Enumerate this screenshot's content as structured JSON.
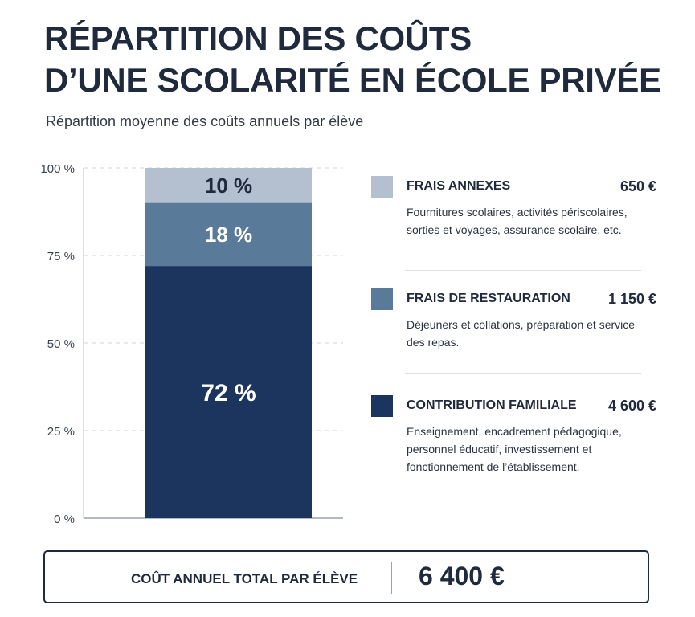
{
  "title": {
    "line1": "RÉPARTITION DES COÛTS",
    "line2": "D’UNE SCOLARITÉ EN ÉCOLE PRIVÉE"
  },
  "subtitle": "Répartition moyenne des coûts annuels par élève",
  "chart_data": {
    "type": "bar",
    "stacked": true,
    "ylim": [
      0,
      100
    ],
    "ytick_values": [
      0,
      25,
      50,
      75,
      100
    ],
    "ytick_labels": [
      "0 %",
      "25 %",
      "50 %",
      "75 %",
      "100 %"
    ],
    "grid": true,
    "series": [
      {
        "name": "CONTRIBUTION FAMILIALE",
        "value": 72,
        "label": "72 %",
        "color": "#1c355e"
      },
      {
        "name": "FRAIS DE RESTAURATION",
        "value": 18,
        "label": "18 %",
        "color": "#597a98"
      },
      {
        "name": "FRAIS ANNEXES",
        "value": 10,
        "label": "10 %",
        "color": "#b4bfd0"
      }
    ]
  },
  "legend": [
    {
      "name": "FRAIS ANNEXES",
      "amount": "650 €",
      "description": "Fournitures scolaires, activités périscolaires, sorties et voyages, assurance scolaire, etc.",
      "color": "#b4bfd0"
    },
    {
      "name": "FRAIS DE RESTAURATION",
      "amount": "1 150 €",
      "description": "Déjeuners et collations, préparation et service des repas.",
      "color": "#597a98"
    },
    {
      "name": "CONTRIBUTION FAMILIALE",
      "amount": "4 600 €",
      "description": "Enseignement, encadrement pédagogique, personnel éducatif, investissement et fonctionnement de l’établissement.",
      "color": "#1c355e"
    }
  ],
  "total": {
    "label": "COÛT ANNUEL TOTAL PAR ÉLÈVE",
    "value": "6 400 €"
  }
}
